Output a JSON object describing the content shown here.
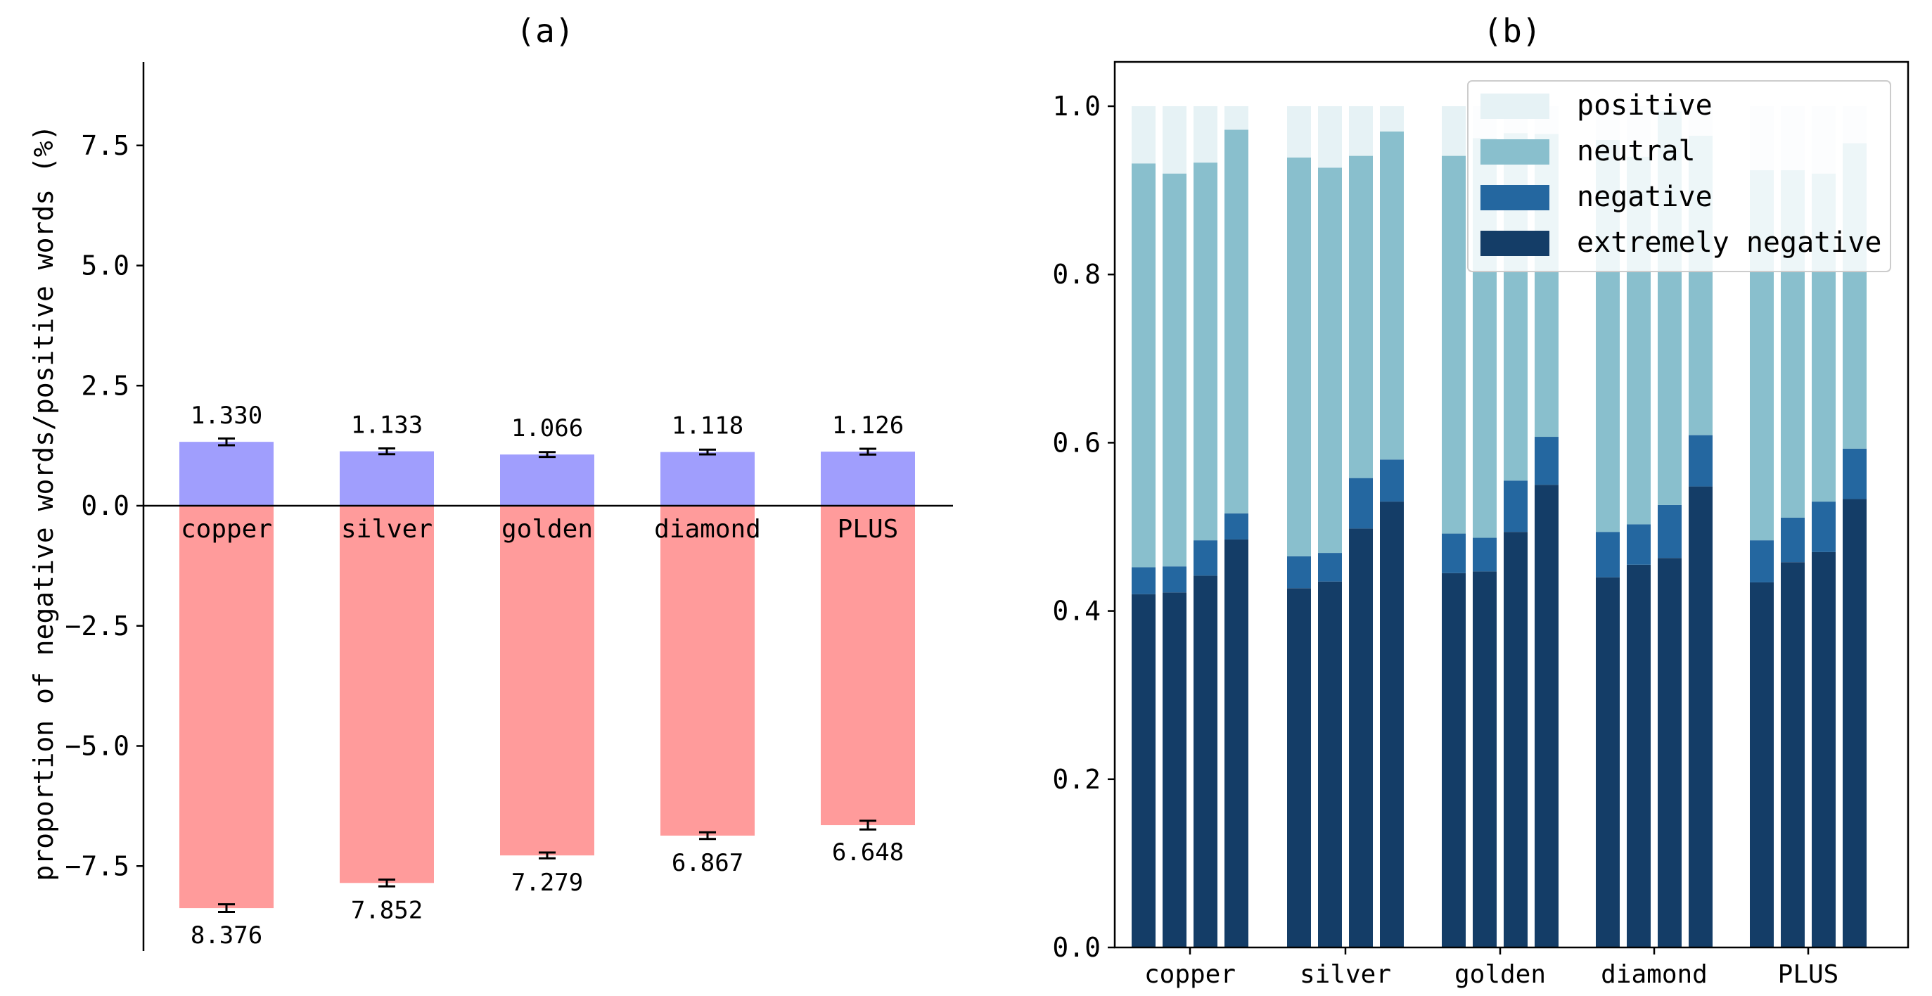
{
  "chart_data": [
    {
      "panel": "a",
      "type": "bar",
      "title": "(a)",
      "ylabel": "proportion of negative words/positive words (%)",
      "xlabel": "",
      "categories": [
        "copper",
        "silver",
        "golden",
        "diamond",
        "PLUS"
      ],
      "series": [
        {
          "values": [
            1.33,
            1.133,
            1.066,
            1.118,
            1.126
          ],
          "labels": [
            "1.330",
            "1.133",
            "1.066",
            "1.118",
            "1.126"
          ],
          "errors": [
            0.07,
            0.06,
            0.05,
            0.05,
            0.06
          ],
          "color": "#a09efd"
        },
        {
          "values": [
            -8.376,
            -7.852,
            -7.279,
            -6.867,
            -6.648
          ],
          "labels": [
            "8.376",
            "7.852",
            "7.279",
            "6.867",
            "6.648"
          ],
          "errors": [
            0.08,
            0.07,
            0.06,
            0.07,
            0.09
          ],
          "color": "#ff9b9b"
        }
      ],
      "yticks": [
        7.5,
        5.0,
        2.5,
        0.0,
        -2.5,
        -5.0,
        -7.5
      ],
      "ytick_labels": [
        "7.5",
        "5.0",
        "2.5",
        "0.0",
        "−2.5",
        "−5.0",
        "−7.5"
      ],
      "ylim": [
        -9.2,
        9.2
      ],
      "grid": false
    },
    {
      "panel": "b",
      "type": "bar",
      "stacked": true,
      "title": "(b)",
      "xlabel": "",
      "ylabel": "",
      "categories": [
        "copper",
        "silver",
        "golden",
        "diamond",
        "PLUS"
      ],
      "bars_per_category": 4,
      "series": [
        {
          "name": "extremely negative",
          "color": "#143d67",
          "values": [
            [
              0.42,
              0.422,
              0.442,
              0.485
            ],
            [
              0.427,
              0.435,
              0.498,
              0.53
            ],
            [
              0.445,
              0.447,
              0.494,
              0.55
            ],
            [
              0.44,
              0.455,
              0.463,
              0.548
            ],
            [
              0.434,
              0.458,
              0.47,
              0.533
            ]
          ]
        },
        {
          "name": "negative",
          "color": "#2467a0",
          "values": [
            [
              0.032,
              0.031,
              0.042,
              0.031
            ],
            [
              0.038,
              0.034,
              0.06,
              0.05
            ],
            [
              0.047,
              0.04,
              0.061,
              0.057
            ],
            [
              0.054,
              0.048,
              0.063,
              0.061
            ],
            [
              0.05,
              0.053,
              0.06,
              0.06
            ]
          ]
        },
        {
          "name": "neutral",
          "color": "#89bfcd",
          "values": [
            [
              0.48,
              0.467,
              0.449,
              0.456
            ],
            [
              0.474,
              0.458,
              0.383,
              0.39
            ],
            [
              0.449,
              0.475,
              0.413,
              0.36
            ],
            [
              0.466,
              0.437,
              0.468,
              0.356
            ],
            [
              0.44,
              0.413,
              0.39,
              0.363
            ]
          ]
        },
        {
          "name": "positive",
          "color": "#e6f2f5",
          "values": [
            [
              0.068,
              0.08,
              0.067,
              0.028
            ],
            [
              0.061,
              0.073,
              0.059,
              0.03
            ],
            [
              0.059,
              0.038,
              0.032,
              0.033
            ],
            [
              0.04,
              0.06,
              0.006,
              0.035
            ],
            [
              0.076,
              0.076,
              0.08,
              0.044
            ]
          ]
        }
      ],
      "yticks": [
        0.0,
        0.2,
        0.4,
        0.6,
        0.8,
        1.0
      ],
      "ytick_labels": [
        "0.0",
        "0.2",
        "0.4",
        "0.6",
        "0.8",
        "1.0"
      ],
      "ylim": [
        0,
        1.05
      ],
      "legend": "top-right",
      "legend_order": [
        "positive",
        "neutral",
        "negative",
        "extremely negative"
      ],
      "grid": false
    }
  ]
}
